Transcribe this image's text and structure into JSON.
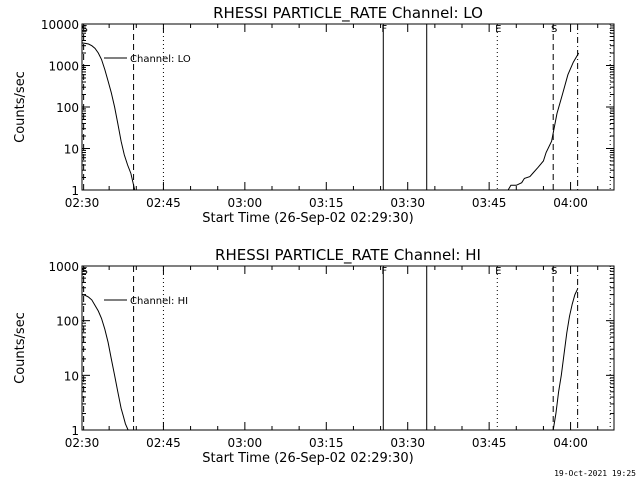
{
  "chart_data": [
    {
      "type": "line",
      "title": "RHESSI PARTICLE_RATE Channel: LO",
      "xlabel": "Start Time (26-Sep-02 02:29:30)",
      "ylabel": "Counts/sec",
      "xlim": [
        0,
        98
      ],
      "ylim": [
        1,
        10000
      ],
      "yscale": "log",
      "xticks": [
        {
          "v": 0,
          "label": "02:30"
        },
        {
          "v": 15,
          "label": "02:45"
        },
        {
          "v": 30,
          "label": "03:00"
        },
        {
          "v": 45,
          "label": "03:15"
        },
        {
          "v": 60,
          "label": "03:30"
        },
        {
          "v": 75,
          "label": "03:45"
        },
        {
          "v": 90,
          "label": "04:00"
        }
      ],
      "yticks": [
        {
          "v": 1,
          "label": "1"
        },
        {
          "v": 10,
          "label": "10"
        },
        {
          "v": 100,
          "label": "100"
        },
        {
          "v": 1000,
          "label": "1000"
        },
        {
          "v": 10000,
          "label": "10000"
        }
      ],
      "legend": "Channel: LO",
      "markers": [
        {
          "x": 0.3,
          "label": "S",
          "style": "dashed"
        },
        {
          "x": 9.5,
          "label": "",
          "style": "dashed"
        },
        {
          "x": 15,
          "label": "",
          "style": "dotted"
        },
        {
          "x": 55.5,
          "label": "F",
          "style": "solid"
        },
        {
          "x": 63.5,
          "label": "",
          "style": "solid"
        },
        {
          "x": 76.5,
          "label": "E",
          "style": "dotted"
        },
        {
          "x": 86.8,
          "label": "S",
          "style": "dashed"
        },
        {
          "x": 91.3,
          "label": "",
          "style": "dashdot"
        },
        {
          "x": 97.3,
          "label": "",
          "style": "dotted"
        }
      ],
      "series": [
        {
          "name": "segment-1",
          "x": [
            0,
            0.6,
            1.2,
            1.8,
            2.4,
            3.0,
            3.6,
            4.2,
            4.8,
            5.4,
            6.0,
            6.6,
            7.2,
            7.8,
            8.4,
            9.0,
            9.4,
            9.7
          ],
          "y": [
            3500,
            3400,
            3300,
            3000,
            2600,
            2000,
            1400,
            800,
            420,
            220,
            100,
            40,
            15,
            7,
            4,
            2.5,
            1.5,
            1
          ]
        },
        {
          "name": "segment-2",
          "x": [
            78.5,
            79.0,
            80.0,
            81.0,
            81.5,
            82.5,
            83.0,
            84.0,
            85.0,
            85.5,
            86.5,
            87.5,
            88.5,
            89.5,
            90.5,
            91.5
          ],
          "y": [
            1,
            1.3,
            1.3,
            1.5,
            1.9,
            2.1,
            2.5,
            3.5,
            5,
            8,
            15,
            70,
            200,
            600,
            1200,
            2000
          ]
        }
      ]
    },
    {
      "type": "line",
      "title": "RHESSI PARTICLE_RATE Channel: HI",
      "xlabel": "Start Time (26-Sep-02 02:29:30)",
      "ylabel": "Counts/sec",
      "xlim": [
        0,
        98
      ],
      "ylim": [
        1,
        1000
      ],
      "yscale": "log",
      "xticks": [
        {
          "v": 0,
          "label": "02:30"
        },
        {
          "v": 15,
          "label": "02:45"
        },
        {
          "v": 30,
          "label": "03:00"
        },
        {
          "v": 45,
          "label": "03:15"
        },
        {
          "v": 60,
          "label": "03:30"
        },
        {
          "v": 75,
          "label": "03:45"
        },
        {
          "v": 90,
          "label": "04:00"
        }
      ],
      "yticks": [
        {
          "v": 1,
          "label": "1"
        },
        {
          "v": 10,
          "label": "10"
        },
        {
          "v": 100,
          "label": "100"
        },
        {
          "v": 1000,
          "label": "1000"
        }
      ],
      "legend": "Channel: HI",
      "markers": [
        {
          "x": 0.3,
          "label": "S",
          "style": "dashed"
        },
        {
          "x": 9.5,
          "label": "",
          "style": "dashed"
        },
        {
          "x": 15,
          "label": "",
          "style": "dotted"
        },
        {
          "x": 55.5,
          "label": "F",
          "style": "solid"
        },
        {
          "x": 63.5,
          "label": "",
          "style": "solid"
        },
        {
          "x": 76.5,
          "label": "E",
          "style": "dotted"
        },
        {
          "x": 86.8,
          "label": "S",
          "style": "dashed"
        },
        {
          "x": 91.3,
          "label": "",
          "style": "dashdot"
        },
        {
          "x": 97.3,
          "label": "",
          "style": "dotted"
        }
      ],
      "series": [
        {
          "name": "segment-1",
          "x": [
            0,
            0.6,
            1.2,
            1.8,
            2.4,
            3.0,
            3.6,
            4.2,
            4.8,
            5.4,
            6.0,
            6.6,
            7.2,
            7.6,
            8.0,
            8.5
          ],
          "y": [
            300,
            290,
            270,
            240,
            190,
            150,
            110,
            70,
            40,
            20,
            10,
            5,
            2.5,
            1.8,
            1.3,
            1
          ]
        },
        {
          "name": "segment-2",
          "x": [
            86.8,
            87.3,
            87.8,
            88.3,
            88.8,
            89.3,
            89.8,
            90.3,
            90.8,
            91.3
          ],
          "y": [
            1,
            2,
            5,
            10,
            25,
            60,
            120,
            200,
            300,
            380
          ]
        }
      ]
    }
  ],
  "footer": {
    "timestamp": "19-Oct-2021 19:25"
  }
}
